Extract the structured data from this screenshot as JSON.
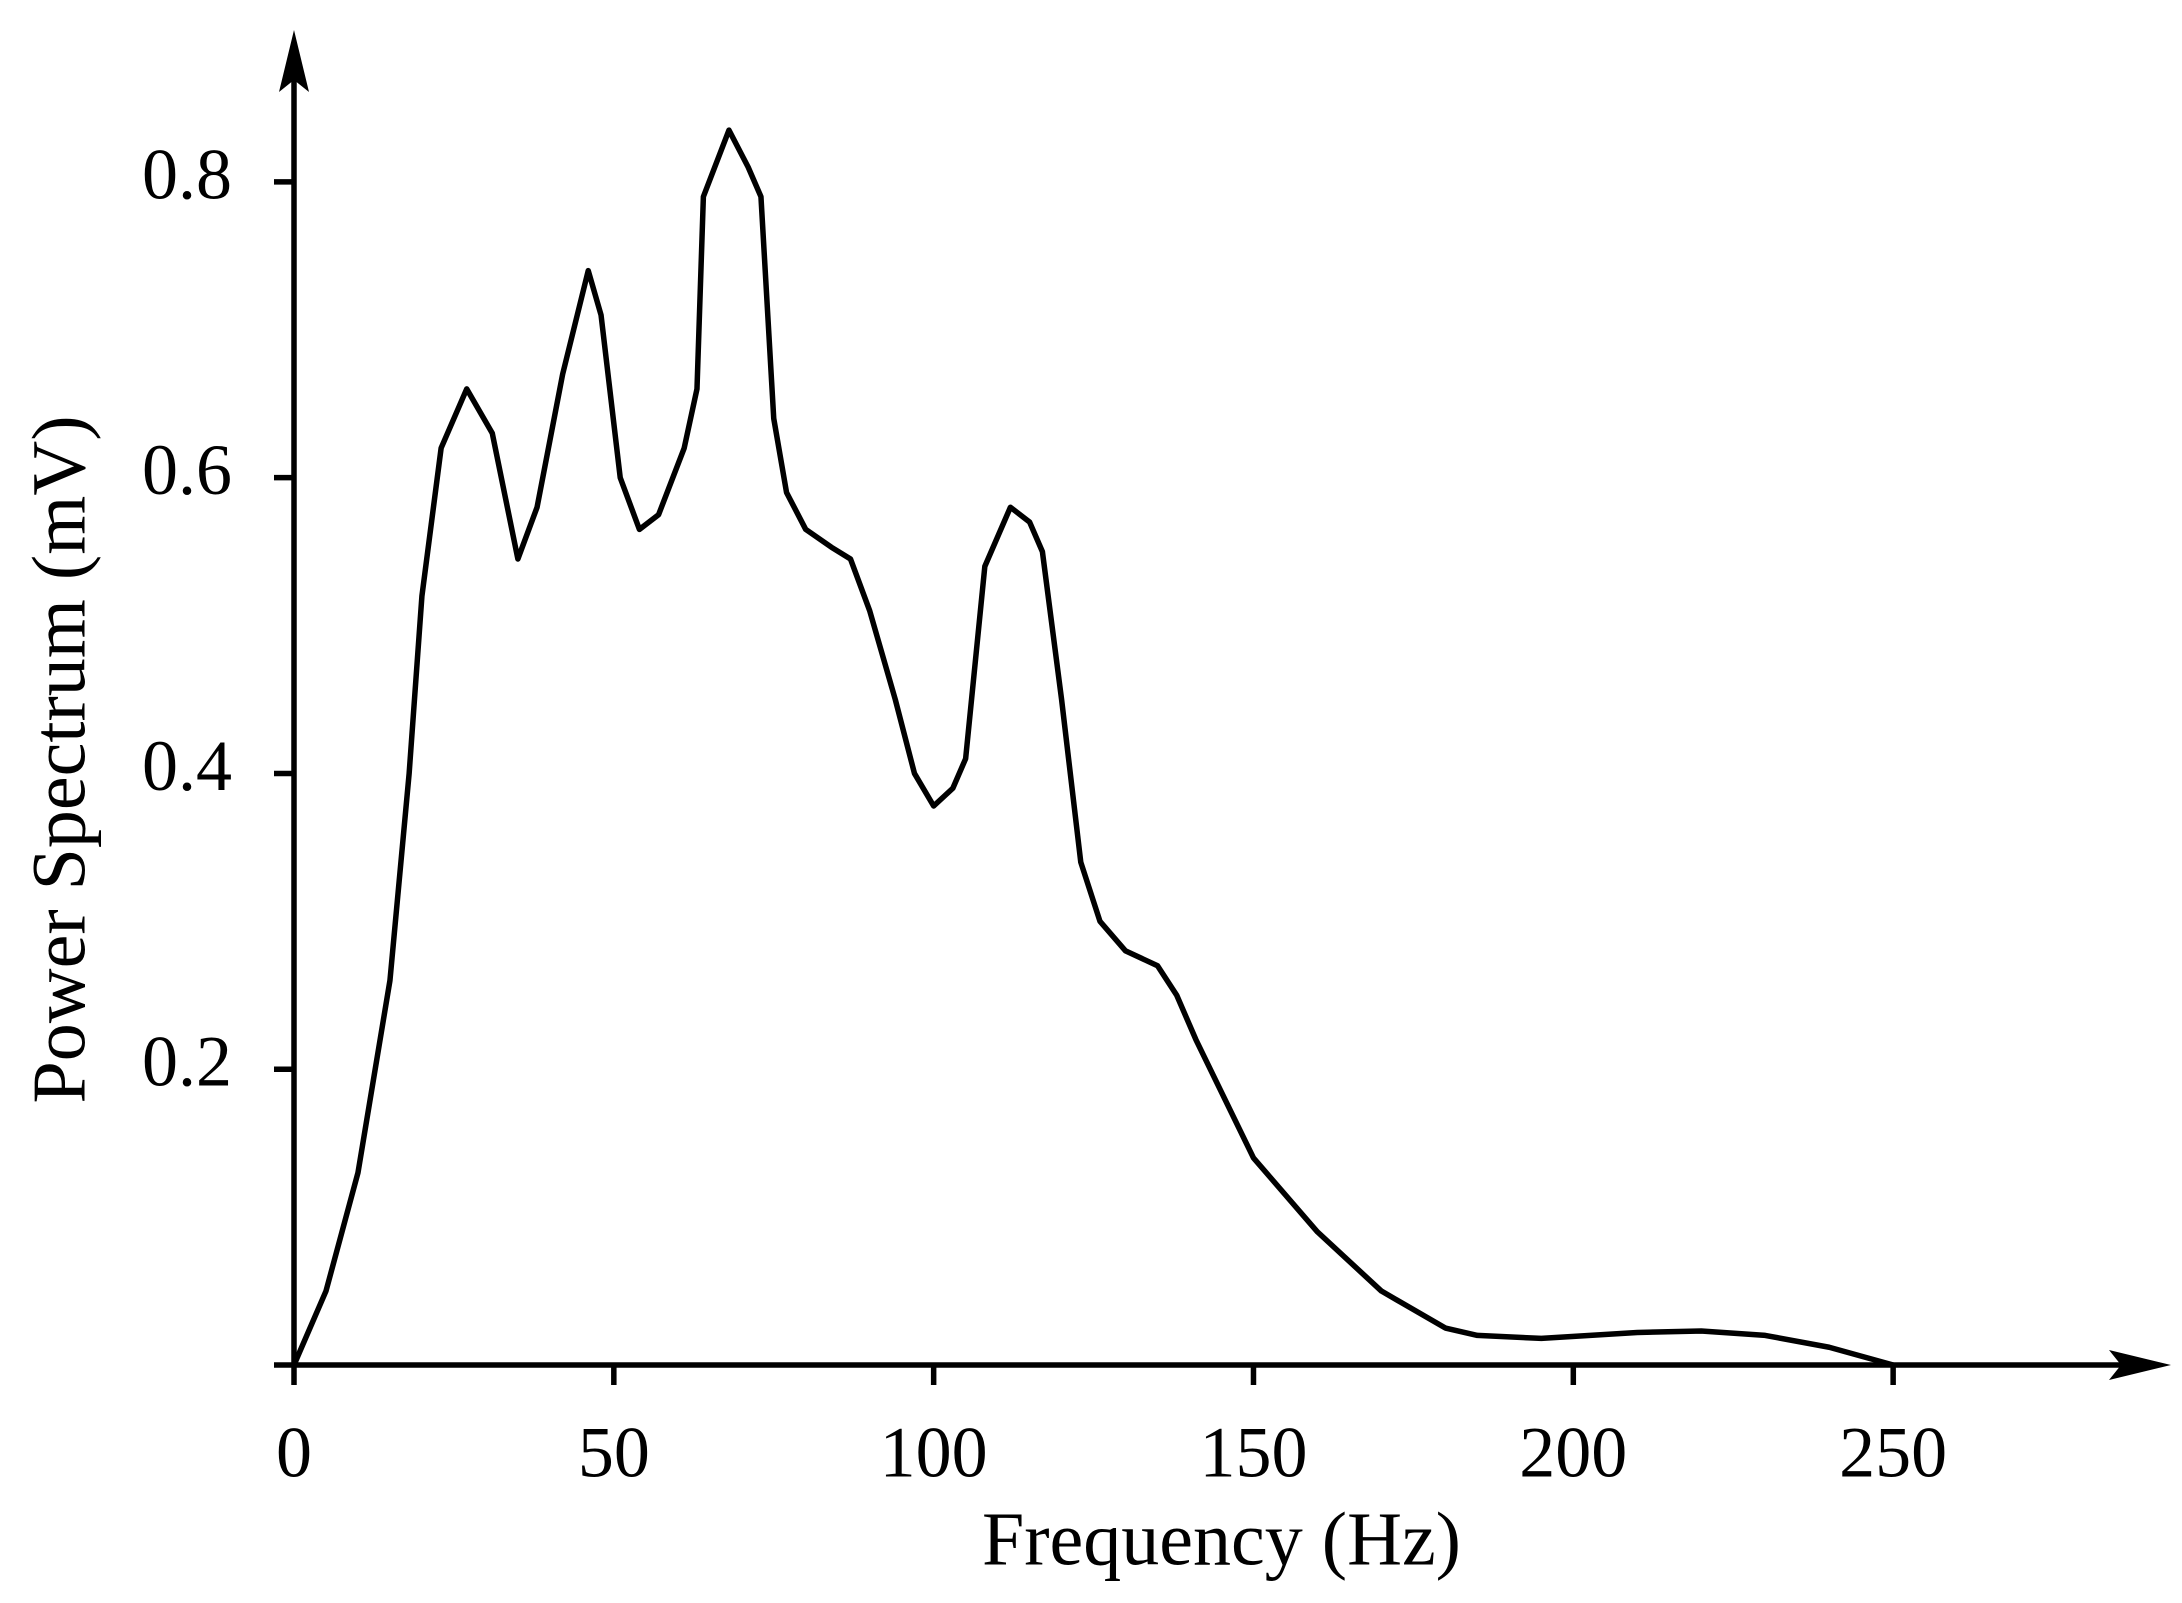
{
  "chart_data": {
    "type": "line",
    "xlabel": "Frequency (Hz)",
    "ylabel": "Power Spectrum (mV)",
    "x": [
      0,
      5,
      10,
      15,
      18,
      20,
      23,
      27,
      31,
      35,
      38,
      42,
      46,
      48,
      51,
      54,
      57,
      61,
      63,
      64,
      68,
      71,
      73,
      75,
      77,
      80,
      84,
      87,
      90,
      94,
      97,
      100,
      103,
      105,
      108,
      112,
      115,
      117,
      120,
      123,
      126,
      130,
      135,
      138,
      141,
      150,
      160,
      170,
      180,
      185,
      195,
      210,
      220,
      230,
      240,
      250
    ],
    "series": [
      {
        "color": "#000000",
        "values": [
          0,
          0.05,
          0.13,
          0.26,
          0.4,
          0.52,
          0.62,
          0.66,
          0.63,
          0.545,
          0.58,
          0.67,
          0.74,
          0.71,
          0.6,
          0.565,
          0.575,
          0.62,
          0.66,
          0.79,
          0.835,
          0.81,
          0.79,
          0.64,
          0.59,
          0.565,
          0.553,
          0.545,
          0.51,
          0.45,
          0.4,
          0.378,
          0.39,
          0.41,
          0.54,
          0.58,
          0.57,
          0.55,
          0.45,
          0.34,
          0.3,
          0.28,
          0.27,
          0.25,
          0.22,
          0.14,
          0.09,
          0.05,
          0.025,
          0.02,
          0.018,
          0.022,
          0.023,
          0.02,
          0.012,
          0
        ]
      }
    ],
    "xlim": [
      0,
      290
    ],
    "ylim": [
      0,
      0.9
    ],
    "xticks": [
      0,
      50,
      100,
      150,
      200,
      250
    ],
    "yticks": [
      0.2,
      0.4,
      0.6,
      0.8
    ],
    "grid": false
  }
}
